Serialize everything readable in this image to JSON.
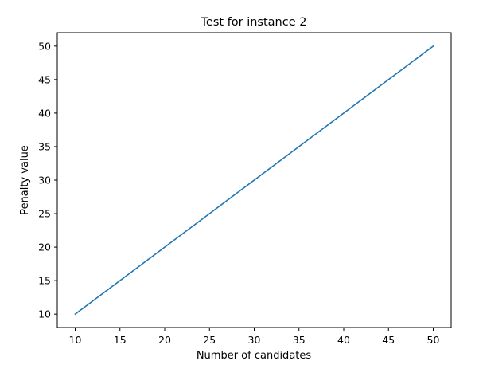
{
  "chart_data": {
    "type": "line",
    "title": "Test for instance 2",
    "xlabel": "Number of candidates",
    "ylabel": "Penalty value",
    "xlim": [
      8,
      52
    ],
    "ylim": [
      8,
      52
    ],
    "x_ticks": [
      10,
      15,
      20,
      25,
      30,
      35,
      40,
      45,
      50
    ],
    "y_ticks": [
      10,
      15,
      20,
      25,
      30,
      35,
      40,
      45,
      50
    ],
    "grid": false,
    "series": [
      {
        "color": "#1f77b4",
        "x": [
          10,
          50
        ],
        "y": [
          10,
          50
        ]
      }
    ]
  }
}
